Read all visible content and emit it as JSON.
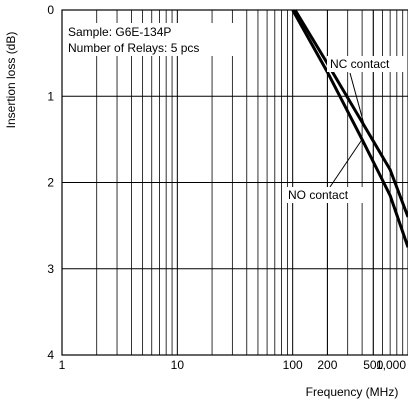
{
  "chart_data": {
    "type": "line",
    "title": "",
    "xlabel": "Frequency (MHz)",
    "ylabel": "Insertion loss (dB)",
    "x_scale": "log",
    "xlim": [
      1,
      1000
    ],
    "ylim": [
      0,
      4
    ],
    "y_inverted": true,
    "grid": true,
    "x_ticks": [
      {
        "value": 1,
        "label": "1"
      },
      {
        "value": 10,
        "label": "10"
      },
      {
        "value": 100,
        "label": "100"
      },
      {
        "value": 200,
        "label": "200"
      },
      {
        "value": 500,
        "label": "500"
      },
      {
        "value": 1000,
        "label": "1,000"
      }
    ],
    "y_ticks": [
      {
        "value": 0,
        "label": "0"
      },
      {
        "value": 1,
        "label": "1"
      },
      {
        "value": 2,
        "label": "2"
      },
      {
        "value": 3,
        "label": "3"
      },
      {
        "value": 4,
        "label": "4"
      }
    ],
    "annotations": {
      "sample": "Sample: G6E-134P",
      "relays": "Number of Relays: 5 pcs"
    },
    "series": [
      {
        "name": "NC contact",
        "color": "#000000",
        "points": [
          [
            105,
            0
          ],
          [
            200,
            0.62
          ],
          [
            400,
            1.3
          ],
          [
            700,
            1.85
          ],
          [
            1000,
            2.4
          ]
        ]
      },
      {
        "name": "NO contact",
        "color": "#000000",
        "points": [
          [
            100,
            0
          ],
          [
            200,
            0.72
          ],
          [
            400,
            1.5
          ],
          [
            700,
            2.15
          ],
          [
            1000,
            2.75
          ]
        ]
      }
    ]
  }
}
